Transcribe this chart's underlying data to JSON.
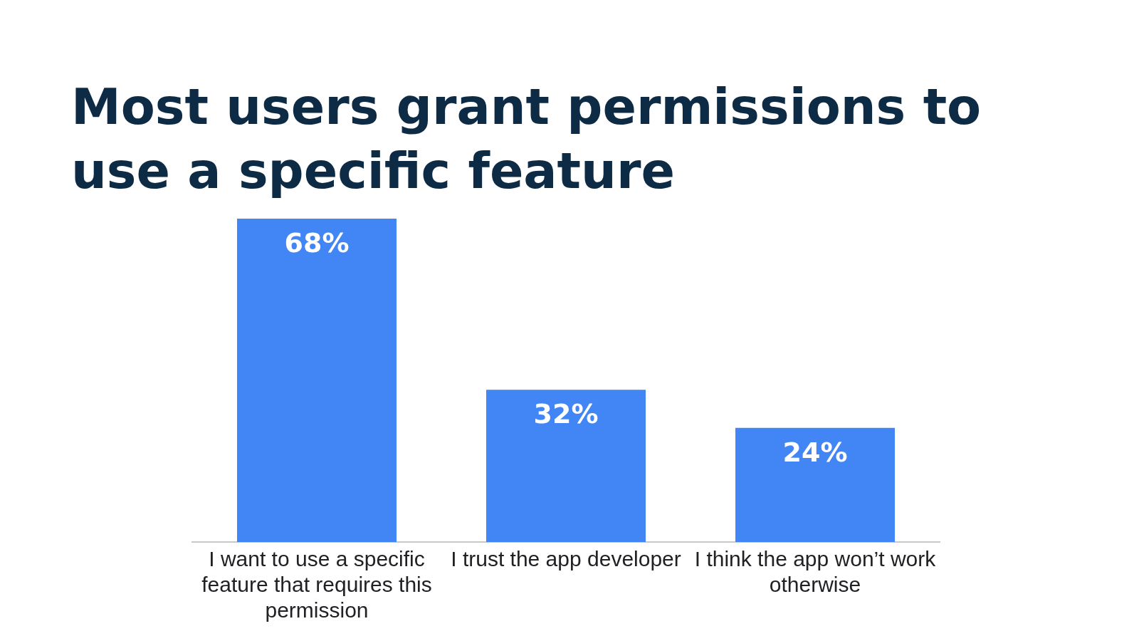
{
  "chart_data": {
    "type": "bar",
    "title": "Most users grant permissions to use a specific feature",
    "categories": [
      "I want to use a specific feature that requires this permission",
      "I trust the app developer",
      "I think the app won’t work otherwise"
    ],
    "values": [
      68,
      32,
      24
    ],
    "color": "#4285f4",
    "data_labels": true,
    "value_labels": [
      "68%",
      "32%",
      "24%"
    ],
    "grid": false,
    "legend": false,
    "tick_labels": "x"
  }
}
